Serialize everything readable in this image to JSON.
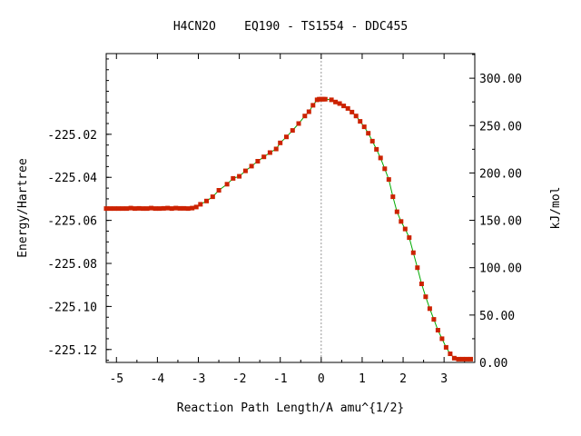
{
  "chart_data": {
    "type": "line",
    "title": "H4CN2O    EQ190 - TS1554 - DDC455",
    "xlabel": "Reaction Path Length/A amu^{1/2}",
    "ylabel": "Energy/Hartree",
    "y2label": "kJ/mol",
    "xlim": [
      -5.25,
      3.75
    ],
    "ylim": [
      -225.126,
      -224.9825
    ],
    "y2lim": [
      0,
      326
    ],
    "xticks": [
      "-5",
      "-4",
      "-3",
      "-2",
      "-1",
      "0",
      "1",
      "2",
      "3"
    ],
    "xtick_values": [
      -5,
      -4,
      -3,
      -2,
      -1,
      0,
      1,
      2,
      3
    ],
    "yticks": [
      "-225.02",
      "-225.04",
      "-225.06",
      "-225.08",
      "-225.10",
      "-225.12"
    ],
    "ytick_values": [
      -225.02,
      -225.04,
      -225.06,
      -225.08,
      -225.1,
      -225.12
    ],
    "y2ticks": [
      "300.00",
      "250.00",
      "200.00",
      "150.00",
      "100.00",
      "50.00",
      "0.00"
    ],
    "y2tick_values": [
      300,
      250,
      200,
      150,
      100,
      50,
      0
    ],
    "ts_line_x": 0,
    "grid": false,
    "series": [
      {
        "color": "#00aa00",
        "marker_color": "#cc2200",
        "x": [
          -5.25,
          -5.15,
          -5.05,
          -4.95,
          -4.85,
          -4.75,
          -4.65,
          -4.55,
          -4.45,
          -4.35,
          -4.25,
          -4.15,
          -4.05,
          -3.95,
          -3.85,
          -3.75,
          -3.65,
          -3.55,
          -3.45,
          -3.35,
          -3.25,
          -3.15,
          -3.05,
          -2.95,
          -2.8,
          -2.65,
          -2.5,
          -2.3,
          -2.15,
          -2.0,
          -1.85,
          -1.7,
          -1.55,
          -1.4,
          -1.25,
          -1.1,
          -1.0,
          -0.85,
          -0.7,
          -0.55,
          -0.4,
          -0.3,
          -0.2,
          -0.1,
          -0.05,
          0.0,
          0.05,
          0.1,
          0.25,
          0.35,
          0.45,
          0.55,
          0.65,
          0.75,
          0.85,
          0.95,
          1.05,
          1.15,
          1.25,
          1.35,
          1.45,
          1.55,
          1.65,
          1.75,
          1.85,
          1.95,
          2.05,
          2.15,
          2.25,
          2.35,
          2.45,
          2.55,
          2.65,
          2.75,
          2.85,
          2.95,
          3.05,
          3.15,
          3.25,
          3.35,
          3.45,
          3.55,
          3.65
        ],
        "y": [
          -225.0545,
          -225.0545,
          -225.0545,
          -225.0545,
          -225.0545,
          -225.0545,
          -225.0543,
          -225.0545,
          -225.0544,
          -225.0545,
          -225.0545,
          -225.0543,
          -225.0545,
          -225.0545,
          -225.0544,
          -225.0543,
          -225.0545,
          -225.0543,
          -225.0544,
          -225.0544,
          -225.0545,
          -225.0543,
          -225.0538,
          -225.0525,
          -225.051,
          -225.049,
          -225.046,
          -225.0432,
          -225.0405,
          -225.0395,
          -225.037,
          -225.0348,
          -225.0325,
          -225.0305,
          -225.0285,
          -225.0268,
          -225.024,
          -225.0212,
          -225.0182,
          -225.015,
          -225.0115,
          -225.0095,
          -225.0065,
          -225.004,
          -225.0037,
          -225.0037,
          -225.0037,
          -225.0037,
          -225.004,
          -225.005,
          -225.0057,
          -225.0068,
          -225.008,
          -225.0097,
          -225.0115,
          -225.014,
          -225.0165,
          -225.0195,
          -225.0232,
          -225.027,
          -225.031,
          -225.036,
          -225.041,
          -225.049,
          -225.056,
          -225.0605,
          -225.064,
          -225.068,
          -225.075,
          -225.082,
          -225.0895,
          -225.0955,
          -225.101,
          -225.106,
          -225.111,
          -225.115,
          -225.119,
          -225.122,
          -225.124,
          -225.1245,
          -225.1245,
          -225.1245,
          -225.1245
        ]
      }
    ]
  }
}
